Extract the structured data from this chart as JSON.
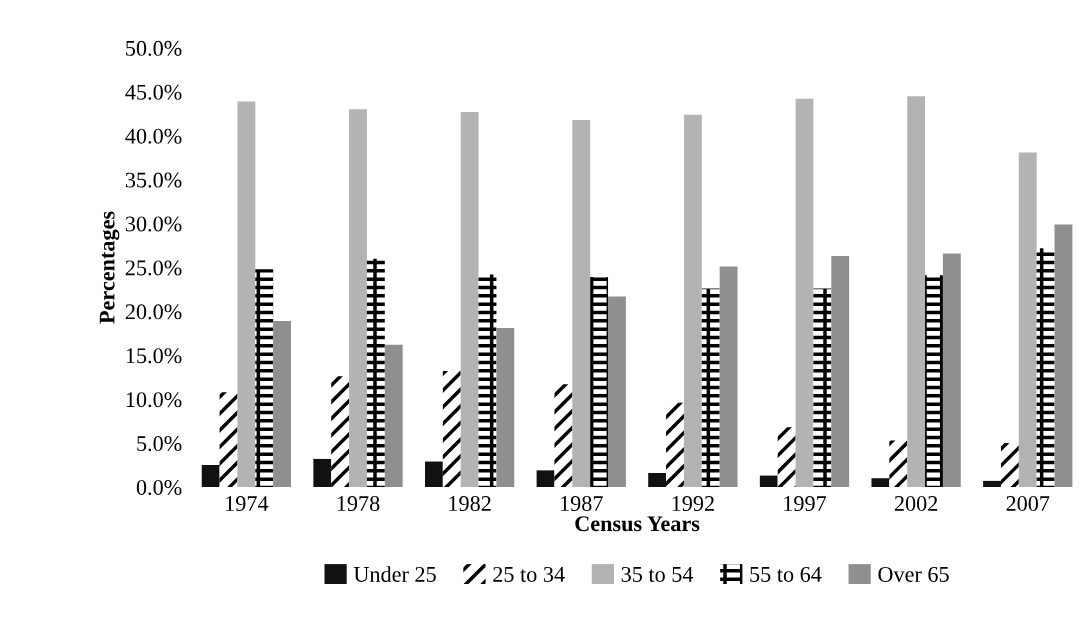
{
  "chart_data": {
    "type": "bar",
    "xlabel": "Census Years",
    "ylabel": "Percentages",
    "categories": [
      "1974",
      "1978",
      "1982",
      "1987",
      "1992",
      "1997",
      "2002",
      "2007"
    ],
    "series": [
      {
        "name": "Under 25",
        "color": "#111111",
        "values": [
          2.5,
          3.2,
          2.9,
          1.9,
          1.6,
          1.3,
          1.0,
          0.7
        ]
      },
      {
        "name": "25 to 34",
        "color": "#000000",
        "values": [
          10.8,
          12.6,
          13.2,
          11.7,
          9.6,
          6.8,
          5.3,
          5.0
        ]
      },
      {
        "name": "35 to 54",
        "color": "#b3b3b3",
        "values": [
          43.9,
          43.0,
          42.7,
          41.8,
          42.4,
          44.2,
          44.5,
          38.1
        ]
      },
      {
        "name": "55 to 64",
        "color": "#000000",
        "values": [
          24.8,
          26.0,
          24.2,
          23.9,
          22.6,
          22.6,
          24.1,
          27.2
        ]
      },
      {
        "name": "Over 65",
        "color": "#8f8f8f",
        "values": [
          18.9,
          16.2,
          18.1,
          21.7,
          25.1,
          26.3,
          26.6,
          29.9
        ]
      }
    ],
    "ylim": [
      0,
      50
    ],
    "yticks": [
      {
        "value": 0,
        "label": "0.0%"
      },
      {
        "value": 5,
        "label": "5.0%"
      },
      {
        "value": 10,
        "label": "10.0%"
      },
      {
        "value": 15,
        "label": "15.0%"
      },
      {
        "value": 20,
        "label": "20.0%"
      },
      {
        "value": 25,
        "label": "25.0%"
      },
      {
        "value": 30,
        "label": "30.0%"
      },
      {
        "value": 35,
        "label": "35.0%"
      },
      {
        "value": 40,
        "label": "40.0%"
      },
      {
        "value": 45,
        "label": "45.0%"
      },
      {
        "value": 50,
        "label": "50.0%"
      }
    ],
    "grid": false,
    "legend": "bottom"
  }
}
